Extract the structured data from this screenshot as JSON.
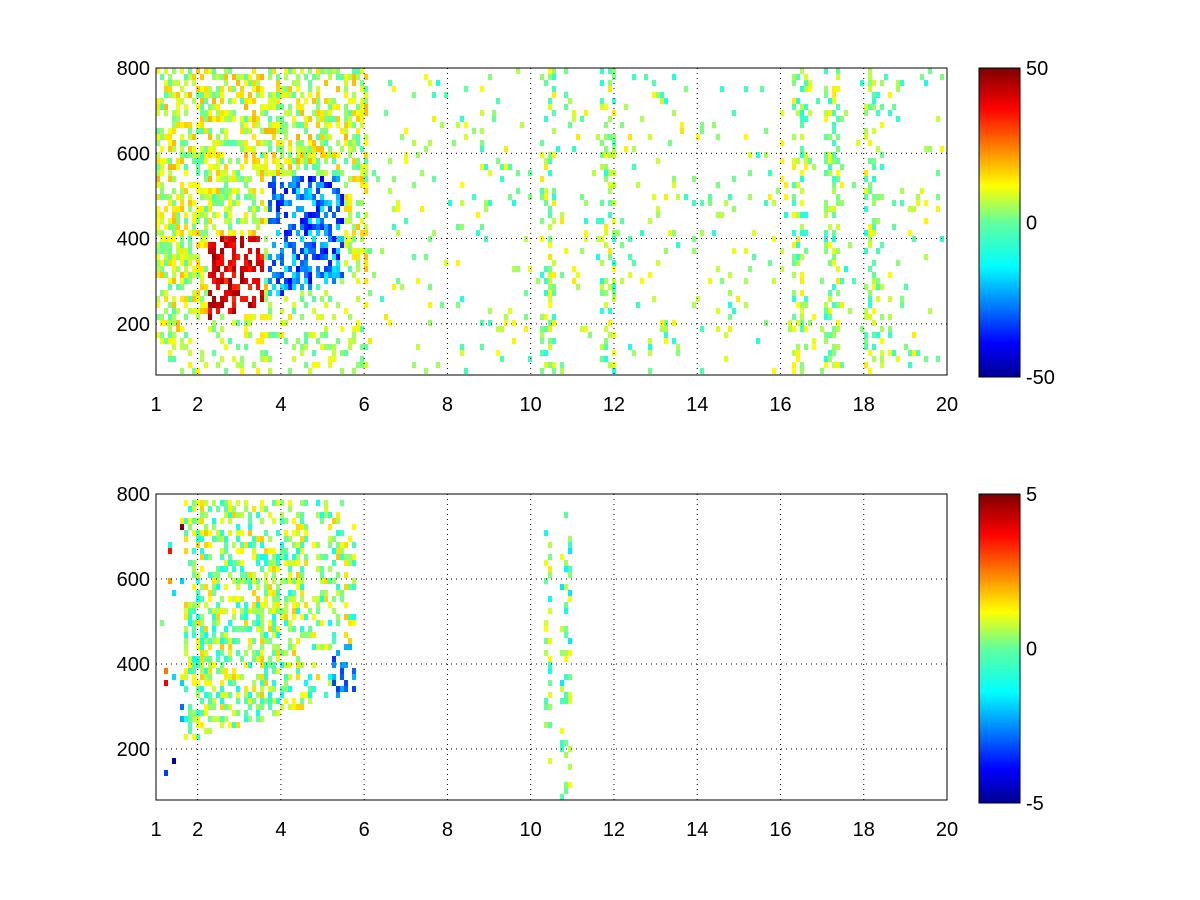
{
  "figure": {
    "background": "#ffffff",
    "colormap": "jet"
  },
  "chart_data": [
    {
      "type": "heatmap",
      "title": "",
      "xlabel": "",
      "ylabel": "",
      "xlim": [
        1,
        20
      ],
      "ylim": [
        80,
        800
      ],
      "xticks": [
        1,
        2,
        4,
        6,
        8,
        10,
        12,
        14,
        16,
        18,
        20
      ],
      "yticks": [
        200,
        400,
        600,
        800
      ],
      "xtick_labels": [
        "1",
        "2",
        "4",
        "6",
        "8",
        "10",
        "12",
        "14",
        "16",
        "18",
        "20"
      ],
      "ytick_labels": [
        "200",
        "400",
        "600",
        "800"
      ],
      "grid": true,
      "grid_style": "dotted",
      "colorbar": {
        "min": -50,
        "max": 50,
        "ticks": [
          50,
          0,
          -50
        ],
        "tick_labels": [
          "50",
          "0",
          "-50"
        ]
      },
      "description_of_values": "sparse colored cells; dense region near x 1-6 with positive values (red) near x~3, y~250-350 and negative values (blue) near x~4, y~250-400; scattered near-zero values (green/yellow) in vertical streaks at x~10.4, 11.8, 16.4, 17.2, 18.2"
    },
    {
      "type": "heatmap",
      "title": "",
      "xlabel": "",
      "ylabel": "",
      "xlim": [
        1,
        20
      ],
      "ylim": [
        80,
        800
      ],
      "xticks": [
        1,
        2,
        4,
        6,
        8,
        10,
        12,
        14,
        16,
        18,
        20
      ],
      "yticks": [
        200,
        400,
        600,
        800
      ],
      "xtick_labels": [
        "1",
        "2",
        "4",
        "6",
        "8",
        "10",
        "12",
        "14",
        "16",
        "18",
        "20"
      ],
      "ytick_labels": [
        "200",
        "400",
        "600",
        "800"
      ],
      "grid": true,
      "grid_style": "dotted",
      "colorbar": {
        "min": -5,
        "max": 5,
        "ticks": [
          5,
          0,
          -5
        ],
        "tick_labels": [
          "5",
          "0",
          "-5"
        ]
      },
      "description_of_values": "sparse colored cells concentrated for x 1.5-5.7, y 200-800 with values near 0 (green/yellow/cyan), negative (blue) near x~5.5, y~350-450; a few points near x~10.4 and x~10.8"
    }
  ]
}
